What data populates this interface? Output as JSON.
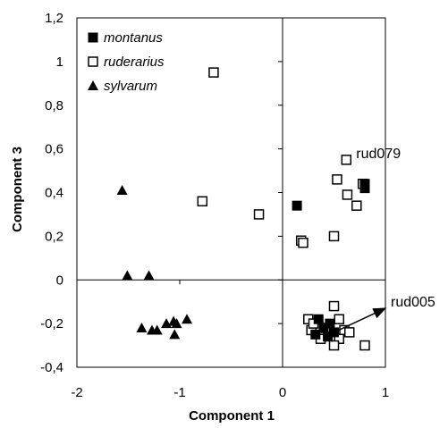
{
  "chart_data": {
    "type": "scatter",
    "xlabel": "Component 1",
    "ylabel": "Component 3",
    "xlim": [
      -2,
      1
    ],
    "ylim": [
      -0.4,
      1.2
    ],
    "xticks": [
      -2,
      -1,
      0,
      1
    ],
    "xtick_labels": [
      "-2",
      "-1",
      "0",
      "1"
    ],
    "yticks": [
      -0.4,
      -0.2,
      0,
      0.2,
      0.4,
      0.6,
      0.8,
      1.0,
      1.2
    ],
    "ytick_labels": [
      "-0,4",
      "-0,2",
      "0",
      "0,2",
      "0,4",
      "0,6",
      "0,8",
      "1",
      "1,2"
    ],
    "grid": false,
    "legend_position": "top-left",
    "series": [
      {
        "name": "montanus",
        "marker": "filled-square",
        "points": [
          [
            0.14,
            0.34
          ],
          [
            0.8,
            0.42
          ],
          [
            0.8,
            0.44
          ],
          [
            0.35,
            -0.18
          ],
          [
            0.46,
            -0.2
          ],
          [
            0.4,
            -0.22
          ],
          [
            0.5,
            -0.24
          ],
          [
            0.44,
            -0.26
          ],
          [
            0.32,
            -0.25
          ]
        ]
      },
      {
        "name": "ruderarius",
        "marker": "open-square",
        "points": [
          [
            -0.67,
            0.95
          ],
          [
            -0.78,
            0.36
          ],
          [
            -0.23,
            0.3
          ],
          [
            0.18,
            0.18
          ],
          [
            0.2,
            0.17
          ],
          [
            0.5,
            0.2
          ],
          [
            0.53,
            0.46
          ],
          [
            0.63,
            0.39
          ],
          [
            0.72,
            0.34
          ],
          [
            0.62,
            0.55
          ],
          [
            0.78,
            0.44
          ],
          [
            0.25,
            -0.18
          ],
          [
            0.28,
            -0.23
          ],
          [
            0.37,
            -0.27
          ],
          [
            0.42,
            -0.22
          ],
          [
            0.5,
            -0.12
          ],
          [
            0.55,
            -0.18
          ],
          [
            0.6,
            -0.23
          ],
          [
            0.65,
            -0.24
          ],
          [
            0.55,
            -0.27
          ],
          [
            0.5,
            -0.3
          ],
          [
            0.8,
            -0.3
          ],
          [
            0.3,
            -0.2
          ]
        ]
      },
      {
        "name": "sylvarum",
        "marker": "filled-triangle",
        "points": [
          [
            -1.56,
            0.41
          ],
          [
            -1.51,
            0.02
          ],
          [
            -1.3,
            0.02
          ],
          [
            -1.37,
            -0.22
          ],
          [
            -1.27,
            -0.23
          ],
          [
            -1.22,
            -0.23
          ],
          [
            -1.13,
            -0.2
          ],
          [
            -1.06,
            -0.19
          ],
          [
            -1.03,
            -0.2
          ],
          [
            -1.05,
            -0.25
          ],
          [
            -0.93,
            -0.18
          ]
        ]
      }
    ],
    "annotations": [
      {
        "label": "rud079",
        "point": [
          0.62,
          0.55
        ],
        "arrow": false
      },
      {
        "label": "rud005",
        "from": [
          0.5,
          -0.24
        ],
        "to": [
          1.0,
          -0.13
        ],
        "arrow": true
      }
    ]
  }
}
